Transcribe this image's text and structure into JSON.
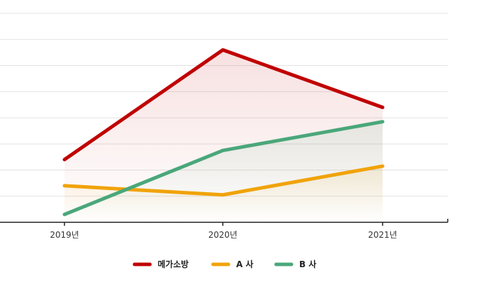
{
  "chart_data": {
    "type": "line",
    "categories": [
      "2019년",
      "2020년",
      "2021년"
    ],
    "ylim": [
      0,
      8
    ],
    "grid": true,
    "legend_placement": "bottom-center",
    "title": "",
    "xlabel": "",
    "ylabel": "",
    "series": [
      {
        "name": "메가소방",
        "color": "#c00000",
        "values": [
          2.4,
          6.6,
          4.4
        ]
      },
      {
        "name": "A 사",
        "color": "#f0a30a",
        "values": [
          1.4,
          1.05,
          2.15
        ]
      },
      {
        "name": "B 사",
        "color": "#4aa77a",
        "values": [
          0.3,
          2.75,
          3.85
        ]
      }
    ]
  }
}
